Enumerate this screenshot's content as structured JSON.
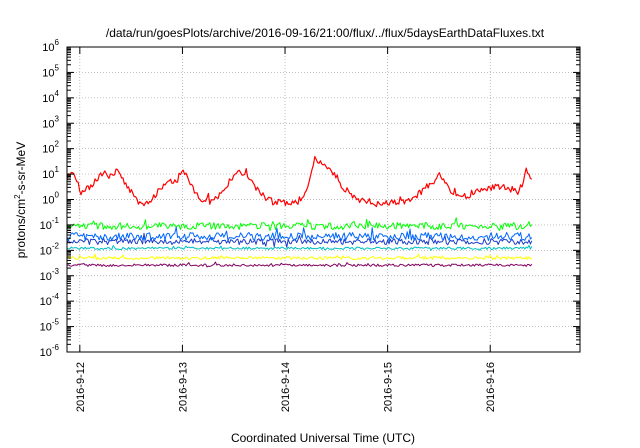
{
  "chart_data": {
    "type": "line",
    "title": "/data/run/goesPlots/archive/2016-09-16/21:00/flux/../flux/5daysEarthDataFluxes.txt",
    "xlabel": "Coordinated Universal Time (UTC)",
    "ylabel": {
      "prefix": "protons/cm",
      "superscript": "2",
      "suffix": "-s-sr-MeV"
    },
    "y_scale": "log",
    "ylim": [
      1e-06,
      1000000.0
    ],
    "y_ticks": [
      {
        "base": "10",
        "exp": "-6",
        "value": 1e-06
      },
      {
        "base": "10",
        "exp": "-5",
        "value": 1e-05
      },
      {
        "base": "10",
        "exp": "-4",
        "value": 0.0001
      },
      {
        "base": "10",
        "exp": "-3",
        "value": 0.001
      },
      {
        "base": "10",
        "exp": "-2",
        "value": 0.01
      },
      {
        "base": "10",
        "exp": "-1",
        "value": 0.1
      },
      {
        "base": "10",
        "exp": "0",
        "value": 1
      },
      {
        "base": "10",
        "exp": "1",
        "value": 10
      },
      {
        "base": "10",
        "exp": "2",
        "value": 100
      },
      {
        "base": "10",
        "exp": "3",
        "value": 1000
      },
      {
        "base": "10",
        "exp": "4",
        "value": 10000
      },
      {
        "base": "10",
        "exp": "5",
        "value": 100000
      },
      {
        "base": "10",
        "exp": "6",
        "value": 1000000
      }
    ],
    "xlim": [
      "2016-09-11 21:00",
      "2016-09-16 21:00"
    ],
    "x_ticks": [
      {
        "label": "2016-9-12",
        "time": "2016-09-12 00:00"
      },
      {
        "label": "2016-9-13",
        "time": "2016-09-13 00:00"
      },
      {
        "label": "2016-9-14",
        "time": "2016-09-14 00:00"
      },
      {
        "label": "2016-9-15",
        "time": "2016-09-15 00:00"
      },
      {
        "label": "2016-9-16",
        "time": "2016-09-16 00:00"
      }
    ],
    "grid": true,
    "series": [
      {
        "color": "#ff0000",
        "noise_dex": 0.12,
        "points": [
          [
            "2016-09-11 21:00",
            8
          ],
          [
            "2016-09-11 22:30",
            12
          ],
          [
            "2016-09-11 23:30",
            4
          ],
          [
            "2016-09-12 00:00",
            2
          ],
          [
            "2016-09-12 01:30",
            2.5
          ],
          [
            "2016-09-12 03:00",
            4
          ],
          [
            "2016-09-12 05:00",
            10
          ],
          [
            "2016-09-12 06:00",
            14
          ],
          [
            "2016-09-12 07:00",
            8
          ],
          [
            "2016-09-12 08:00",
            10
          ],
          [
            "2016-09-12 09:00",
            15
          ],
          [
            "2016-09-12 10:00",
            6
          ],
          [
            "2016-09-12 12:00",
            2
          ],
          [
            "2016-09-12 13:30",
            0.8
          ],
          [
            "2016-09-12 15:00",
            0.6
          ],
          [
            "2016-09-12 17:00",
            1
          ],
          [
            "2016-09-12 19:00",
            3
          ],
          [
            "2016-09-12 21:00",
            6
          ],
          [
            "2016-09-12 22:30",
            5
          ],
          [
            "2016-09-12 23:30",
            8
          ],
          [
            "2016-09-13 00:00",
            18
          ],
          [
            "2016-09-13 00:30",
            12
          ],
          [
            "2016-09-13 01:30",
            6
          ],
          [
            "2016-09-13 03:00",
            2
          ],
          [
            "2016-09-13 04:30",
            1
          ],
          [
            "2016-09-13 07:00",
            0.8
          ],
          [
            "2016-09-13 09:00",
            1.5
          ],
          [
            "2016-09-13 11:00",
            5
          ],
          [
            "2016-09-13 13:00",
            12
          ],
          [
            "2016-09-13 14:30",
            10
          ],
          [
            "2016-09-13 16:00",
            5
          ],
          [
            "2016-09-13 18:00",
            2
          ],
          [
            "2016-09-13 20:00",
            1
          ],
          [
            "2016-09-13 22:00",
            0.8
          ],
          [
            "2016-09-14 01:00",
            0.6
          ],
          [
            "2016-09-14 03:00",
            0.8
          ],
          [
            "2016-09-14 05:00",
            2
          ],
          [
            "2016-09-14 06:00",
            10
          ],
          [
            "2016-09-14 07:00",
            40
          ],
          [
            "2016-09-14 08:00",
            30
          ],
          [
            "2016-09-14 10:00",
            15
          ],
          [
            "2016-09-14 12:00",
            8
          ],
          [
            "2016-09-14 13:30",
            3
          ],
          [
            "2016-09-14 15:00",
            2
          ],
          [
            "2016-09-14 17:00",
            1
          ],
          [
            "2016-09-14 19:00",
            0.8
          ],
          [
            "2016-09-14 21:00",
            0.6
          ],
          [
            "2016-09-14 23:00",
            0.7
          ],
          [
            "2016-09-15 02:00",
            0.8
          ],
          [
            "2016-09-15 05:00",
            0.9
          ],
          [
            "2016-09-15 07:00",
            1.5
          ],
          [
            "2016-09-15 09:00",
            3
          ],
          [
            "2016-09-15 11:00",
            5
          ],
          [
            "2016-09-15 12:00",
            10
          ],
          [
            "2016-09-15 13:00",
            6
          ],
          [
            "2016-09-15 15:00",
            2
          ],
          [
            "2016-09-15 17:00",
            1.3
          ],
          [
            "2016-09-15 19:00",
            1.5
          ],
          [
            "2016-09-15 21:00",
            2
          ],
          [
            "2016-09-15 23:00",
            2.5
          ],
          [
            "2016-09-16 01:00",
            3
          ],
          [
            "2016-09-16 03:00",
            3
          ],
          [
            "2016-09-16 05:00",
            2.5
          ],
          [
            "2016-09-16 06:30",
            2
          ],
          [
            "2016-09-16 07:30",
            4
          ],
          [
            "2016-09-16 08:30",
            12
          ],
          [
            "2016-09-16 09:00",
            8
          ],
          [
            "2016-09-16 10:00",
            5
          ]
        ]
      },
      {
        "color": "#00ff00",
        "noise_dex": 0.14,
        "points": [
          [
            "2016-09-11 21:00",
            0.09
          ],
          [
            "2016-09-16 10:00",
            0.09
          ]
        ]
      },
      {
        "color": "#0066ff",
        "noise_dex": 0.16,
        "points": [
          [
            "2016-09-11 21:00",
            0.035
          ],
          [
            "2016-09-16 10:00",
            0.035
          ]
        ]
      },
      {
        "color": "#1c3cc8",
        "noise_dex": 0.12,
        "points": [
          [
            "2016-09-11 21:00",
            0.022
          ],
          [
            "2016-09-16 10:00",
            0.022
          ]
        ]
      },
      {
        "color": "#00c0c0",
        "noise_dex": 0.05,
        "points": [
          [
            "2016-09-11 21:00",
            0.012
          ],
          [
            "2016-09-16 10:00",
            0.012
          ]
        ]
      },
      {
        "color": "#ffff00",
        "noise_dex": 0.06,
        "points": [
          [
            "2016-09-11 21:00",
            0.005
          ],
          [
            "2016-09-16 10:00",
            0.005
          ]
        ]
      },
      {
        "color": "#800060",
        "noise_dex": 0.05,
        "points": [
          [
            "2016-09-11 21:00",
            0.0026
          ],
          [
            "2016-09-16 10:00",
            0.0026
          ]
        ]
      }
    ]
  }
}
